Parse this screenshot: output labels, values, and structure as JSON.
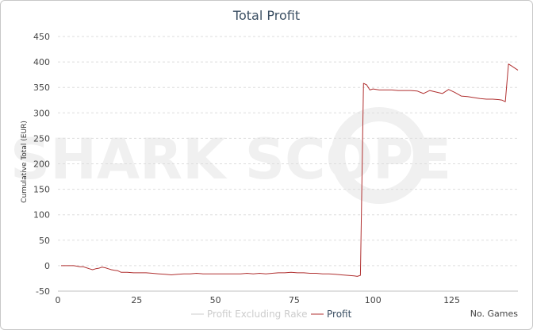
{
  "chart_data": {
    "type": "line",
    "title": "Total Profit",
    "xlabel": "No. Games",
    "ylabel": "Cumulative Total (EUR)",
    "xlim": [
      0,
      146
    ],
    "ylim": [
      -50,
      450
    ],
    "xticks": [
      "0",
      "25",
      "50",
      "75",
      "100",
      "125"
    ],
    "yticks": [
      "450",
      "400",
      "350",
      "300",
      "250",
      "200",
      "150",
      "100",
      "50",
      "0",
      "-50"
    ],
    "grid": true,
    "legend_position": "bottom-center",
    "watermark": "SHARK SCOPE",
    "series": [
      {
        "name": "Profit Excluding Rake",
        "color": "#cccccc",
        "x": [],
        "y": []
      },
      {
        "name": "Profit",
        "color": "#b03030",
        "x": [
          1,
          2,
          3,
          4,
          5,
          6,
          7,
          8,
          9,
          10,
          11,
          12,
          13,
          14,
          15,
          16,
          17,
          18,
          19,
          20,
          22,
          24,
          26,
          28,
          30,
          32,
          34,
          36,
          38,
          40,
          42,
          44,
          46,
          48,
          50,
          52,
          54,
          56,
          58,
          60,
          62,
          64,
          66,
          68,
          70,
          72,
          74,
          76,
          78,
          80,
          82,
          84,
          86,
          88,
          90,
          92,
          94,
          95,
          96,
          97,
          98,
          99,
          100,
          102,
          104,
          106,
          108,
          110,
          112,
          114,
          116,
          118,
          120,
          122,
          124,
          126,
          128,
          130,
          132,
          134,
          136,
          138,
          140,
          141,
          142,
          143,
          144,
          145,
          146
        ],
        "y": [
          0,
          0,
          0,
          0,
          0,
          -1,
          -2,
          -2,
          -4,
          -6,
          -8,
          -6,
          -5,
          -3,
          -4,
          -6,
          -8,
          -9,
          -10,
          -13,
          -13,
          -14,
          -14,
          -14,
          -15,
          -16,
          -17,
          -18,
          -17,
          -16,
          -16,
          -15,
          -16,
          -16,
          -16,
          -16,
          -16,
          -16,
          -16,
          -15,
          -16,
          -15,
          -16,
          -15,
          -14,
          -14,
          -13,
          -14,
          -14,
          -15,
          -15,
          -16,
          -16,
          -17,
          -18,
          -19,
          -20,
          -21,
          -19,
          358,
          355,
          345,
          347,
          345,
          345,
          345,
          344,
          344,
          344,
          343,
          338,
          344,
          341,
          338,
          346,
          340,
          333,
          332,
          330,
          328,
          327,
          327,
          326,
          325,
          322,
          396,
          392,
          388,
          384
        ]
      }
    ]
  }
}
